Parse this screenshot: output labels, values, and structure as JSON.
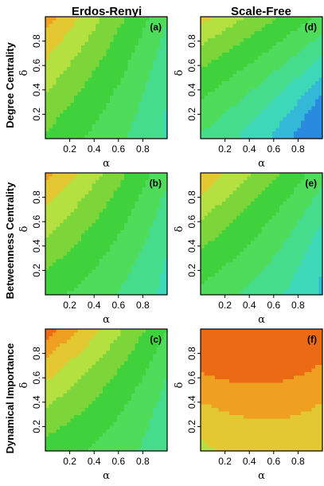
{
  "chart_data": {
    "type": "heatmap",
    "column_titles": [
      "Erdos-Renyi",
      "Scale-Free"
    ],
    "row_titles": [
      "Degree Centrality",
      "Betweenness Centrality",
      "Dynamical Importance"
    ],
    "xlabel": "α",
    "ylabel": "δ",
    "xlim": [
      0,
      1
    ],
    "ylim": [
      0,
      1
    ],
    "x_ticks": [
      "0.2",
      "0.4",
      "0.6",
      "0.8"
    ],
    "y_ticks": [
      "0.2",
      "0.4",
      "0.6",
      "0.8"
    ],
    "grid": false,
    "palette": [
      "#1e5fd0",
      "#2a8ae0",
      "#33b8d8",
      "#3cd8b8",
      "#45dc8c",
      "#4fdc5a",
      "#3fd23c",
      "#7cd63a",
      "#b4e040",
      "#e4c832",
      "#f0a020",
      "#ec6a14",
      "#e01c0c"
    ],
    "panels": [
      {
        "label": "(a)",
        "row": 0,
        "col": 0,
        "levels": [
          0.08,
          0.12,
          0.18,
          0.26,
          0.36,
          0.48,
          0.6,
          0.72,
          0.84,
          0.94
        ],
        "model": {
          "base": 4.6,
          "d": 3.4,
          "a": -3.2,
          "ad": -3.4,
          "d2": 1.0,
          "a2": 0.3
        }
      },
      {
        "label": "(b)",
        "row": 1,
        "col": 0,
        "levels": [
          0.08,
          0.12,
          0.18,
          0.26,
          0.36,
          0.48,
          0.6,
          0.72,
          0.84,
          0.94
        ],
        "model": {
          "base": 4.0,
          "d": 3.8,
          "a": -2.4,
          "ad": -3.6,
          "d2": 1.0,
          "a2": 0.0
        }
      },
      {
        "label": "(c)",
        "row": 2,
        "col": 0,
        "levels": [
          0.08,
          0.12,
          0.18,
          0.26,
          0.36,
          0.48,
          0.6,
          0.72,
          0.84,
          0.94
        ],
        "model": {
          "base": 4.3,
          "d": 4.2,
          "a": -2.0,
          "ad": -4.2,
          "d2": 1.6,
          "a2": -0.3
        }
      },
      {
        "label": "(d)",
        "row": 0,
        "col": 1,
        "levels": [
          0.08,
          0.12,
          0.18,
          0.26,
          0.36,
          0.48,
          0.6,
          0.72,
          0.84,
          0.94
        ],
        "model": {
          "base": 2.5,
          "d": 2.6,
          "a": -2.4,
          "ad": -2.2,
          "d2": 2.6,
          "a2": 0.2
        }
      },
      {
        "label": "(e)",
        "row": 1,
        "col": 1,
        "levels": [
          0.08,
          0.12,
          0.18,
          0.26,
          0.36,
          0.48,
          0.6,
          0.72,
          0.84,
          0.94
        ],
        "model": {
          "base": 3.3,
          "d": 3.4,
          "a": -2.2,
          "ad": -3.2,
          "d2": 1.6,
          "a2": 0.0
        }
      },
      {
        "label": "(f)",
        "row": 2,
        "col": 1,
        "levels": [
          0.08,
          0.12,
          0.18,
          0.26,
          0.36,
          0.48,
          0.6,
          0.72,
          0.84,
          0.94
        ],
        "model": {
          "base": 6.9,
          "d": 3.4,
          "a": 2.4,
          "ad": -1.2,
          "d2": 0.8,
          "a2": -1.9
        }
      }
    ]
  }
}
